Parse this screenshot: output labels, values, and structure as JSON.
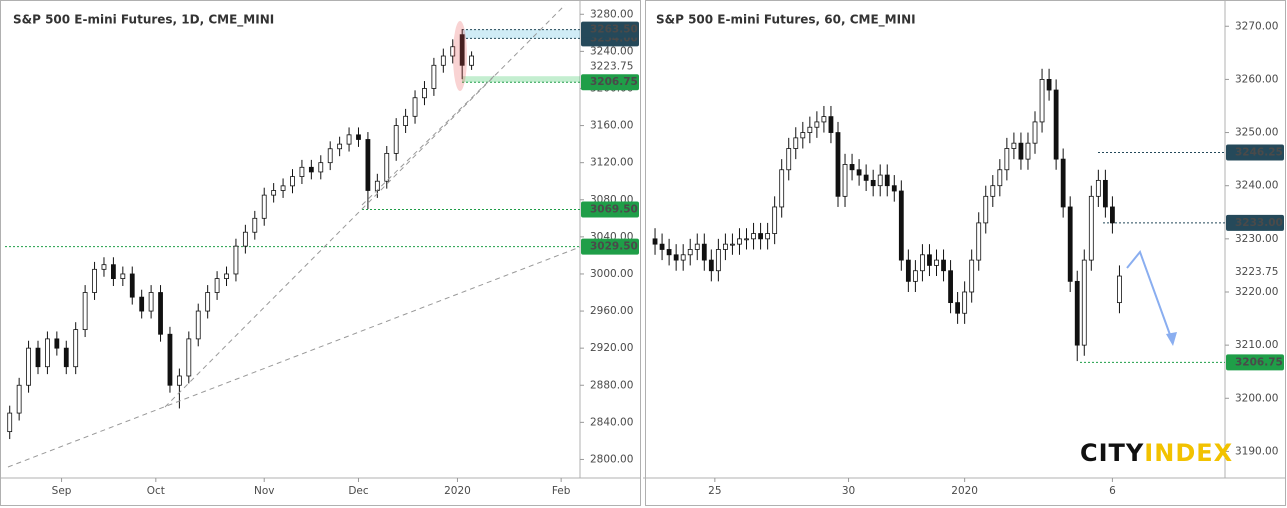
{
  "chart_data": [
    {
      "type": "candlestick",
      "title": "S&P 500 E-mini Futures, 1D, CME_MINI",
      "x": [
        0,
        2,
        4,
        6,
        8,
        10,
        12,
        14,
        16,
        18,
        20,
        22,
        24,
        26,
        28,
        30,
        32,
        34,
        36,
        38,
        40,
        42,
        44,
        46,
        48,
        50,
        52,
        54,
        56,
        58,
        60,
        62,
        64,
        66,
        68,
        70,
        72,
        74,
        76,
        78,
        80,
        82,
        84,
        86,
        88,
        90,
        92,
        94,
        96,
        98
      ],
      "open": [
        2830,
        2850,
        2880,
        2920,
        2900,
        2930,
        2920,
        2900,
        2940,
        2980,
        3005,
        3010,
        2995,
        3000,
        2975,
        2960,
        2980,
        2935,
        2880,
        2890,
        2930,
        2960,
        2980,
        2995,
        3000,
        3030,
        3045,
        3060,
        3085,
        3090,
        3095,
        3105,
        3115,
        3110,
        3120,
        3135,
        3140,
        3150,
        3145,
        3090,
        3100,
        3130,
        3160,
        3170,
        3190,
        3200,
        3225,
        3235,
        3258,
        3225
      ],
      "high": [
        2858,
        2888,
        2928,
        2928,
        2938,
        2938,
        2928,
        2948,
        2988,
        3013,
        3018,
        3018,
        3008,
        3008,
        2983,
        2988,
        2988,
        2943,
        2898,
        2938,
        2968,
        2988,
        3003,
        3008,
        3038,
        3053,
        3068,
        3093,
        3098,
        3103,
        3113,
        3123,
        3123,
        3128,
        3143,
        3148,
        3158,
        3158,
        3153,
        3108,
        3138,
        3168,
        3178,
        3198,
        3208,
        3233,
        3243,
        3253,
        3264,
        3240
      ],
      "low": [
        2822,
        2842,
        2872,
        2892,
        2892,
        2912,
        2892,
        2892,
        2932,
        2972,
        2997,
        2987,
        2987,
        2967,
        2952,
        2952,
        2927,
        2872,
        2855,
        2882,
        2922,
        2952,
        2972,
        2987,
        2992,
        3022,
        3037,
        3052,
        3077,
        3082,
        3087,
        3097,
        3102,
        3102,
        3112,
        3127,
        3132,
        3137,
        3070,
        3082,
        3092,
        3122,
        3152,
        3162,
        3182,
        3192,
        3217,
        3227,
        3210,
        3220
      ],
      "close": [
        2850,
        2880,
        2920,
        2900,
        2930,
        2920,
        2900,
        2940,
        2980,
        3005,
        3010,
        2995,
        3000,
        2975,
        2960,
        2980,
        2935,
        2880,
        2890,
        2930,
        2960,
        2980,
        2995,
        3000,
        3030,
        3045,
        3060,
        3085,
        3090,
        3095,
        3105,
        3115,
        3110,
        3120,
        3135,
        3140,
        3150,
        3145,
        3090,
        3100,
        3130,
        3160,
        3170,
        3190,
        3200,
        3225,
        3235,
        3245,
        3225,
        3235
      ],
      "xlim": [
        -1,
        121
      ],
      "xticks": [
        {
          "value": 11,
          "label": "Sep"
        },
        {
          "value": 31,
          "label": "Oct"
        },
        {
          "value": 54,
          "label": "Nov"
        },
        {
          "value": 74,
          "label": "Dec"
        },
        {
          "value": 95,
          "label": "2020"
        },
        {
          "value": 117,
          "label": "Feb"
        }
      ],
      "ylim": [
        2780,
        3290
      ],
      "yticks": [
        {
          "value": 2800,
          "label": "2800.00"
        },
        {
          "value": 2840,
          "label": "2840.00"
        },
        {
          "value": 2880,
          "label": "2880.00"
        },
        {
          "value": 2920,
          "label": "2920.00"
        },
        {
          "value": 2960,
          "label": "2960.00"
        },
        {
          "value": 3000,
          "label": "3000.00"
        },
        {
          "value": 3040,
          "label": "3040.00"
        },
        {
          "value": 3080,
          "label": "3080.00"
        },
        {
          "value": 3120,
          "label": "3120.00"
        },
        {
          "value": 3160,
          "label": "3160.00"
        },
        {
          "value": 3200,
          "label": "3200.00"
        },
        {
          "value": 3240,
          "label": "3240.00"
        },
        {
          "value": 3280,
          "label": "3280.00"
        }
      ],
      "price_tags": [
        {
          "value": 3254,
          "label": "3254.00",
          "color": "#25495a"
        },
        {
          "value": 3263.5,
          "label": "3263.50",
          "color": "#25495a"
        },
        {
          "value": 3223.75,
          "label": "3223.75",
          "color": "#ffffff"
        },
        {
          "value": 3206.75,
          "label": "3206.75",
          "color": "#1f9e48"
        },
        {
          "value": 3069.5,
          "label": "3069.50",
          "color": "#1f9e48"
        },
        {
          "value": 3029.5,
          "label": "3029.50",
          "color": "#1f9e48"
        }
      ]
    },
    {
      "type": "candlestick",
      "title": "S&P 500 E-mini Futures, 60, CME_MINI",
      "x": [
        0,
        1,
        2,
        3,
        4,
        5,
        6,
        7,
        8,
        9,
        10,
        11,
        12,
        13,
        14,
        15,
        16,
        17,
        18,
        19,
        20,
        21,
        22,
        23,
        24,
        25,
        26,
        27,
        28,
        29,
        30,
        31,
        32,
        33,
        34,
        35,
        36,
        37,
        38,
        39,
        40,
        41,
        42,
        43,
        44,
        45,
        46,
        47,
        48,
        49,
        50,
        51,
        52,
        53,
        54,
        55,
        56,
        57,
        58,
        59,
        60,
        61,
        62,
        63,
        64,
        65,
        66
      ],
      "open": [
        3230,
        3229,
        3228,
        3227,
        3226,
        3227,
        3228,
        3229,
        3226,
        3224,
        3228,
        3229,
        3229,
        3230,
        3230,
        3231,
        3230,
        3231,
        3236,
        3243,
        3247,
        3249,
        3250,
        3251,
        3252,
        3253,
        3250,
        3238,
        3244,
        3243,
        3242,
        3241,
        3240,
        3242,
        3240,
        3239,
        3226,
        3222,
        3224,
        3227,
        3225,
        3226,
        3224,
        3218,
        3216,
        3220,
        3226,
        3233,
        3238,
        3240,
        3243,
        3247,
        3248,
        3245,
        3248,
        3252,
        3260,
        3258,
        3245,
        3236,
        3222,
        3210,
        3226,
        3238,
        3241,
        3236,
        3218
      ],
      "high": [
        3232,
        3231,
        3230,
        3229,
        3229,
        3230,
        3231,
        3231,
        3228,
        3230,
        3231,
        3231,
        3232,
        3232,
        3233,
        3233,
        3233,
        3238,
        3245,
        3249,
        3251,
        3252,
        3253,
        3254,
        3255,
        3255,
        3252,
        3246,
        3246,
        3245,
        3244,
        3243,
        3244,
        3244,
        3242,
        3241,
        3228,
        3226,
        3229,
        3229,
        3228,
        3228,
        3226,
        3220,
        3222,
        3228,
        3235,
        3240,
        3242,
        3245,
        3249,
        3250,
        3250,
        3250,
        3254,
        3262,
        3262,
        3260,
        3247,
        3238,
        3224,
        3228,
        3240,
        3243,
        3243,
        3238,
        3225
      ],
      "low": [
        3227,
        3226,
        3225,
        3224,
        3224,
        3225,
        3226,
        3224,
        3222,
        3222,
        3226,
        3227,
        3227,
        3228,
        3228,
        3228,
        3228,
        3229,
        3234,
        3241,
        3245,
        3247,
        3248,
        3249,
        3250,
        3248,
        3236,
        3236,
        3241,
        3240,
        3239,
        3238,
        3238,
        3238,
        3237,
        3224,
        3220,
        3220,
        3222,
        3223,
        3223,
        3222,
        3216,
        3214,
        3214,
        3218,
        3224,
        3231,
        3236,
        3238,
        3241,
        3245,
        3243,
        3243,
        3246,
        3250,
        3256,
        3243,
        3234,
        3220,
        3207,
        3208,
        3224,
        3236,
        3234,
        3231,
        3216
      ],
      "close": [
        3229,
        3228,
        3227,
        3226,
        3227,
        3228,
        3229,
        3226,
        3224,
        3228,
        3229,
        3229,
        3230,
        3230,
        3231,
        3230,
        3231,
        3236,
        3243,
        3247,
        3249,
        3250,
        3251,
        3252,
        3253,
        3250,
        3238,
        3244,
        3243,
        3242,
        3241,
        3240,
        3242,
        3240,
        3239,
        3226,
        3222,
        3224,
        3227,
        3225,
        3226,
        3224,
        3218,
        3216,
        3220,
        3226,
        3233,
        3238,
        3240,
        3243,
        3247,
        3248,
        3245,
        3248,
        3252,
        3260,
        3258,
        3245,
        3236,
        3222,
        3210,
        3226,
        3238,
        3241,
        3236,
        3233,
        3223
      ],
      "xlim": [
        -1,
        81
      ],
      "xticks": [
        {
          "value": 8.5,
          "label": "25"
        },
        {
          "value": 27.5,
          "label": "30"
        },
        {
          "value": 44,
          "label": "2020"
        },
        {
          "value": 65,
          "label": "6"
        }
      ],
      "ylim": [
        3185,
        3274
      ],
      "yticks": [
        {
          "value": 3190,
          "label": "3190.00"
        },
        {
          "value": 3200,
          "label": "3200.00"
        },
        {
          "value": 3210,
          "label": "3210.00"
        },
        {
          "value": 3220,
          "label": "3220.00"
        },
        {
          "value": 3230,
          "label": "3230.00"
        },
        {
          "value": 3240,
          "label": "3240.00"
        },
        {
          "value": 3250,
          "label": "3250.00"
        },
        {
          "value": 3260,
          "label": "3260.00"
        },
        {
          "value": 3270,
          "label": "3270.00"
        }
      ],
      "price_tags": [
        {
          "value": 3246.25,
          "label": "3246.25",
          "color": "#25495a"
        },
        {
          "value": 3233,
          "label": "3233.00",
          "color": "#25495a"
        },
        {
          "value": 3223.75,
          "label": "3223.75",
          "color": "#ffffff"
        },
        {
          "value": 3206.75,
          "label": "3206.75",
          "color": "#1f9e48"
        }
      ]
    }
  ],
  "logo": {
    "first": "CITY",
    "second": "INDEX"
  }
}
